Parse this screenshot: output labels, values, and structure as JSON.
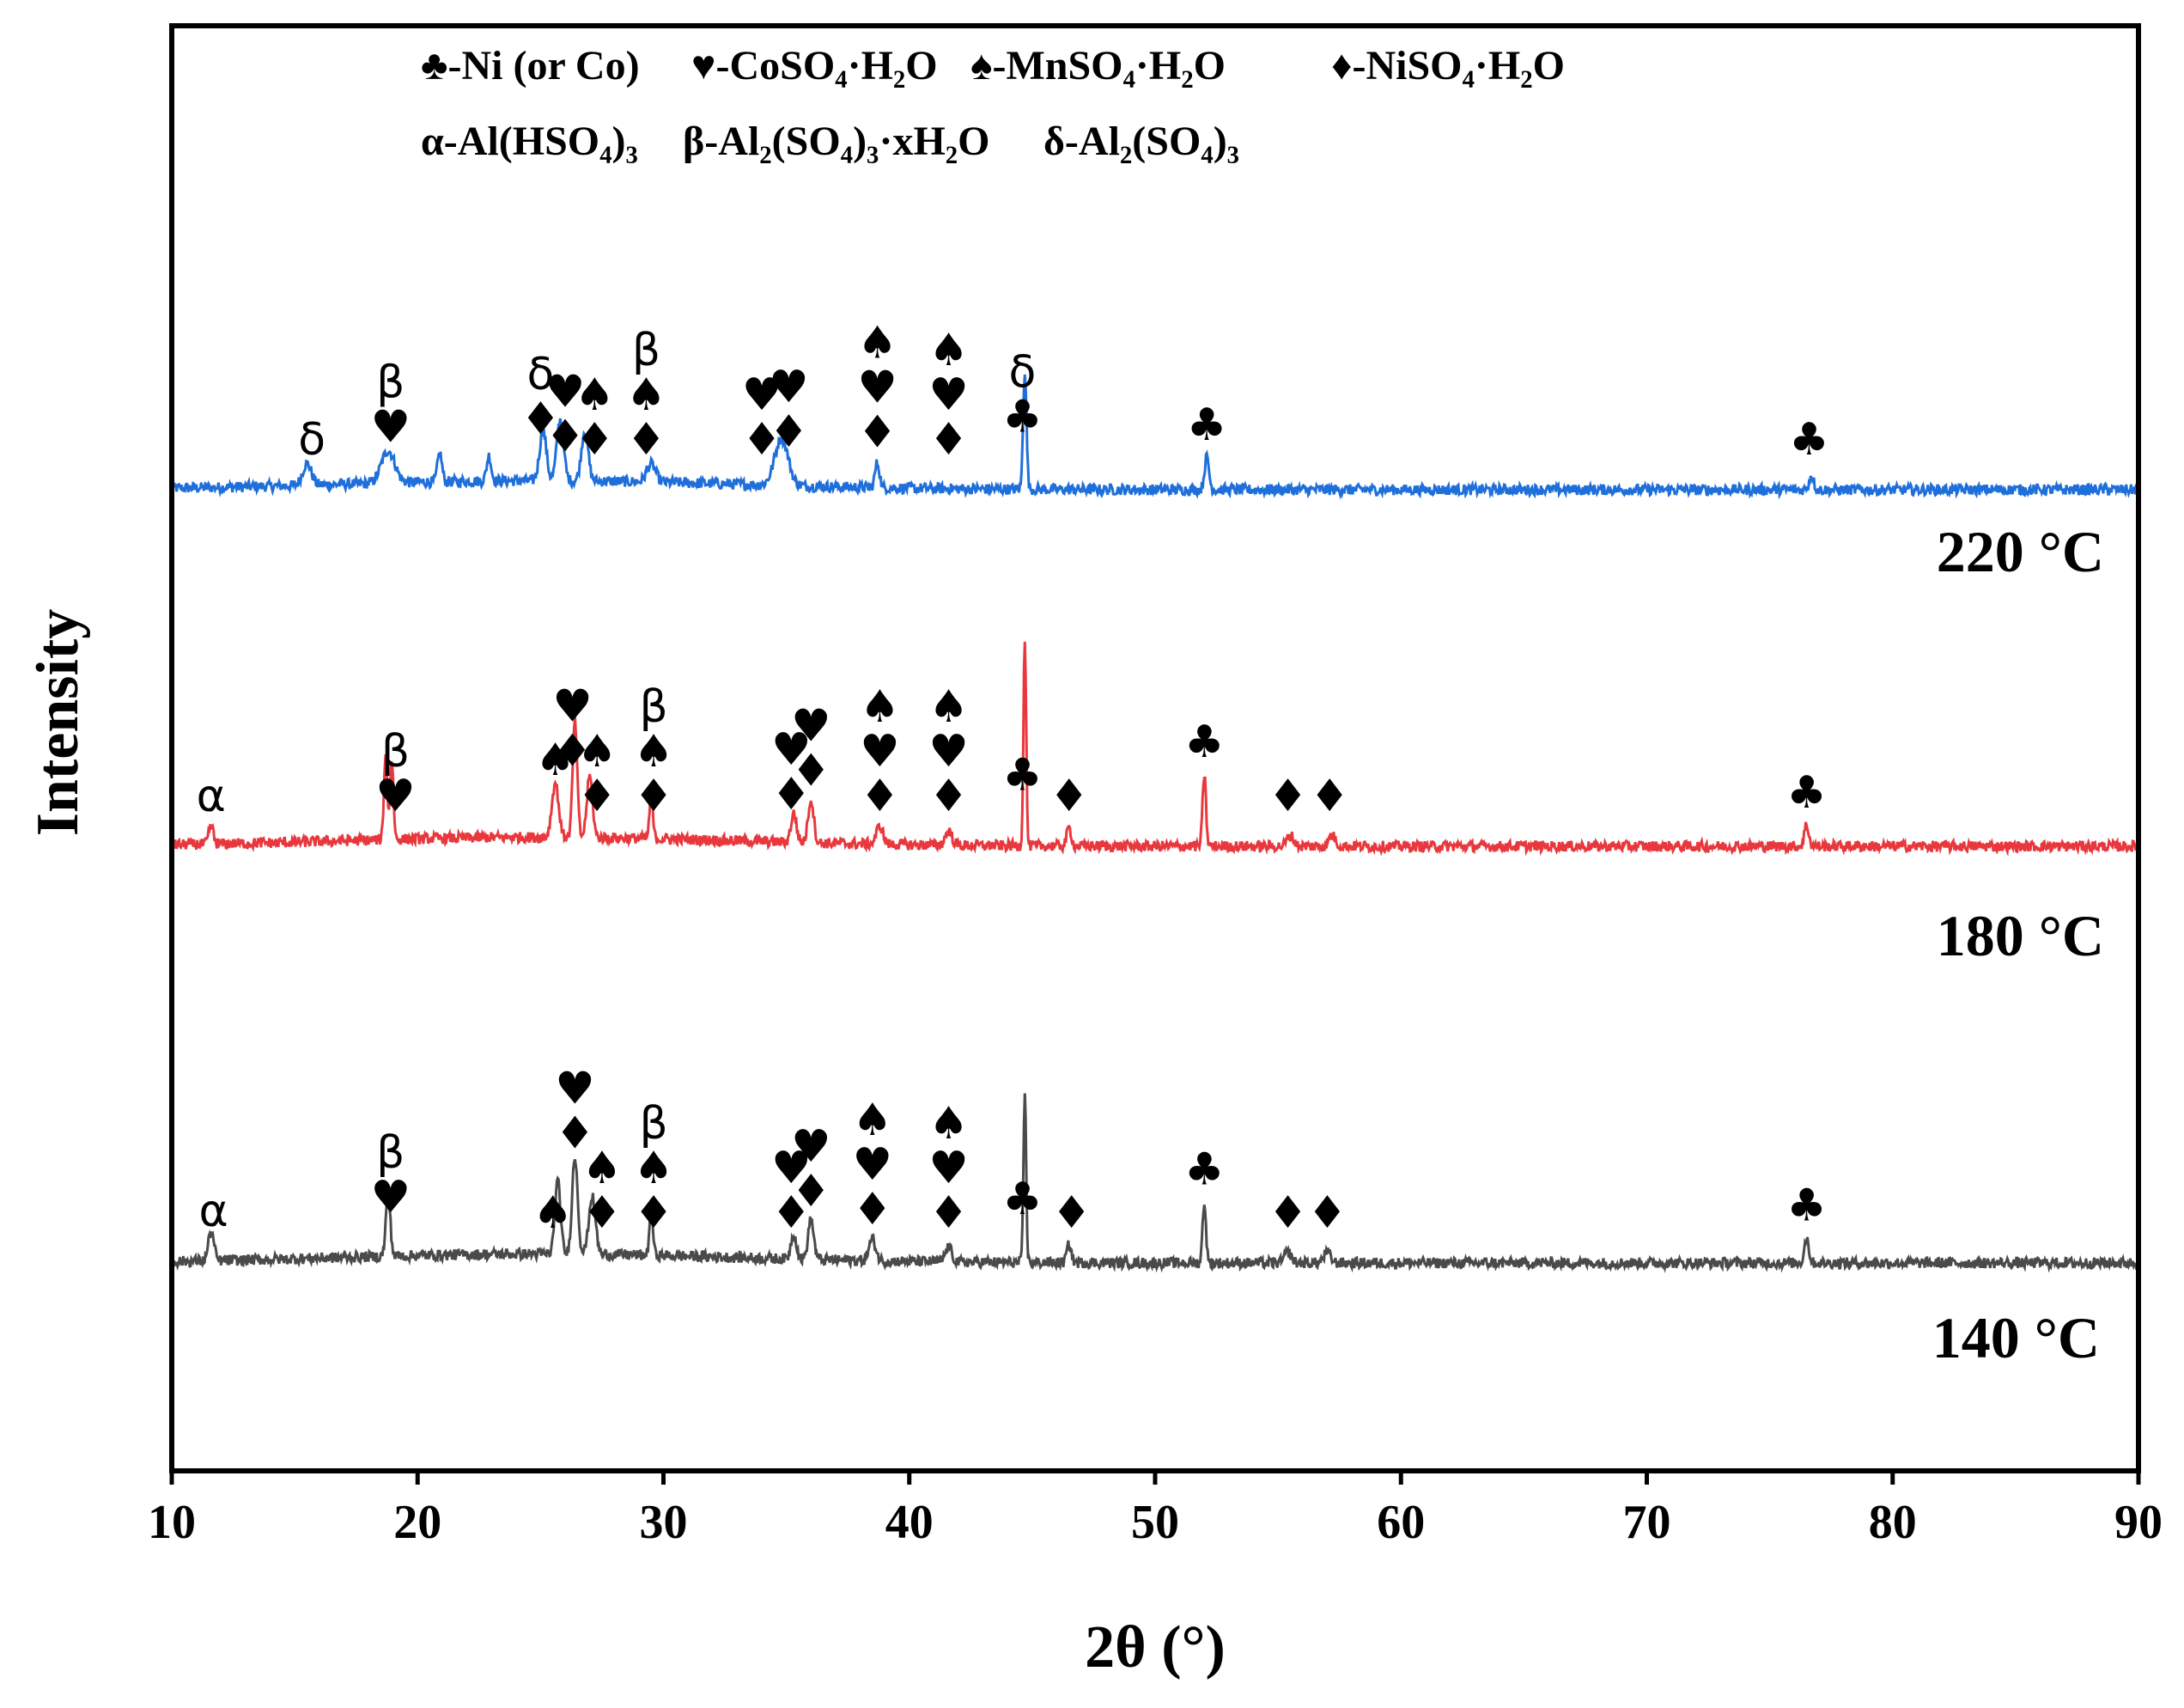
{
  "chart_data": {
    "type": "line",
    "title": "",
    "xlabel": "2θ (°)",
    "ylabel": "Intensity",
    "xlim": [
      10,
      90
    ],
    "xticks": [
      10,
      20,
      30,
      40,
      50,
      60,
      70,
      80,
      90
    ],
    "xtick_labels": [
      "10",
      "20",
      "30",
      "40",
      "50",
      "60",
      "70",
      "80",
      "90"
    ],
    "legend": {
      "placement": "top",
      "line1": [
        "♣-Ni (or Co)",
        "♥-CoSO₄·H₂O",
        "♠-MnSO₄·H₂O",
        "♦-NiSO₄·H₂O"
      ],
      "line2": [
        "α-Al(HSO₄)₃",
        "β-Al₂(SO₄)₃·xH₂O",
        "δ-Al₂(SO₄)₃"
      ]
    },
    "series": [
      {
        "name": "220 °C",
        "label": "220 °C",
        "color": "#1f6fdb",
        "baseline": 1.0,
        "peaks": [
          {
            "x": 15.5,
            "h": 0.06,
            "w": 0.4
          },
          {
            "x": 18.8,
            "h": 0.09,
            "w": 0.6
          },
          {
            "x": 20.9,
            "h": 0.08,
            "w": 0.2
          },
          {
            "x": 22.9,
            "h": 0.07,
            "w": 0.2
          },
          {
            "x": 25.1,
            "h": 0.14,
            "w": 0.3
          },
          {
            "x": 25.8,
            "h": 0.17,
            "w": 0.3
          },
          {
            "x": 26.8,
            "h": 0.14,
            "w": 0.3
          },
          {
            "x": 29.5,
            "h": 0.05,
            "w": 0.4
          },
          {
            "x": 34.8,
            "h": 0.13,
            "w": 0.6
          },
          {
            "x": 38.7,
            "h": 0.07,
            "w": 0.2
          },
          {
            "x": 44.7,
            "h": 0.33,
            "w": 0.15
          },
          {
            "x": 52.1,
            "h": 0.09,
            "w": 0.2
          },
          {
            "x": 76.7,
            "h": 0.04,
            "w": 0.2
          }
        ],
        "markers": [
          {
            "x": 15.7,
            "stack": [
              "δ"
            ]
          },
          {
            "x": 18.9,
            "stack": [
              "β",
              "♥"
            ]
          },
          {
            "x": 25.0,
            "stack": [
              "δ",
              "♦"
            ]
          },
          {
            "x": 26.0,
            "stack": [
              "♥",
              "♦"
            ]
          },
          {
            "x": 27.2,
            "stack": [
              "♠",
              "♦"
            ]
          },
          {
            "x": 29.3,
            "stack": [
              "β",
              "♠",
              "♦"
            ]
          },
          {
            "x": 34.0,
            "stack": [
              "♥",
              "♦"
            ]
          },
          {
            "x": 35.1,
            "stack": [
              "♥",
              "♦"
            ]
          },
          {
            "x": 38.7,
            "stack": [
              "♠",
              "♥",
              "♦"
            ]
          },
          {
            "x": 41.6,
            "stack": [
              "♠",
              "♥",
              "♦"
            ]
          },
          {
            "x": 44.6,
            "stack": [
              "δ",
              "♣"
            ]
          },
          {
            "x": 52.1,
            "stack": [
              "♣"
            ]
          },
          {
            "x": 76.6,
            "stack": [
              "♣"
            ]
          }
        ]
      },
      {
        "name": "180 °C",
        "label": "180 °C",
        "color": "#e8383d",
        "baseline": 0.0,
        "peaks": [
          {
            "x": 11.6,
            "h": 0.05,
            "w": 0.2
          },
          {
            "x": 18.7,
            "h": 0.24,
            "w": 0.15
          },
          {
            "x": 18.95,
            "h": 0.22,
            "w": 0.15
          },
          {
            "x": 25.6,
            "h": 0.15,
            "w": 0.3
          },
          {
            "x": 26.4,
            "h": 0.32,
            "w": 0.2
          },
          {
            "x": 27.0,
            "h": 0.17,
            "w": 0.25
          },
          {
            "x": 29.5,
            "h": 0.12,
            "w": 0.15
          },
          {
            "x": 35.3,
            "h": 0.08,
            "w": 0.25
          },
          {
            "x": 36.0,
            "h": 0.12,
            "w": 0.25
          },
          {
            "x": 38.8,
            "h": 0.05,
            "w": 0.3
          },
          {
            "x": 41.6,
            "h": 0.04,
            "w": 0.3
          },
          {
            "x": 44.7,
            "h": 0.58,
            "w": 0.12
          },
          {
            "x": 46.5,
            "h": 0.05,
            "w": 0.2
          },
          {
            "x": 52.0,
            "h": 0.2,
            "w": 0.15
          },
          {
            "x": 55.5,
            "h": 0.03,
            "w": 0.3
          },
          {
            "x": 57.2,
            "h": 0.03,
            "w": 0.3
          },
          {
            "x": 76.5,
            "h": 0.06,
            "w": 0.2
          }
        ],
        "markers": [
          {
            "x": 11.6,
            "stack": [
              "α"
            ]
          },
          {
            "x": 19.1,
            "stack": [
              "β",
              "♥"
            ]
          },
          {
            "x": 25.6,
            "stack": [
              "♠"
            ]
          },
          {
            "x": 26.3,
            "stack": [
              "♥",
              "♦"
            ]
          },
          {
            "x": 27.3,
            "stack": [
              "♠",
              "♦"
            ]
          },
          {
            "x": 29.6,
            "stack": [
              "β",
              "♠",
              "♦"
            ]
          },
          {
            "x": 35.2,
            "stack": [
              "♥",
              "♦"
            ]
          },
          {
            "x": 36.0,
            "stack": [
              "♥",
              "♦"
            ]
          },
          {
            "x": 38.8,
            "stack": [
              "♠",
              "♥",
              "♦"
            ]
          },
          {
            "x": 41.6,
            "stack": [
              "♠",
              "♥",
              "♦"
            ]
          },
          {
            "x": 44.6,
            "stack": [
              "♣"
            ]
          },
          {
            "x": 46.5,
            "stack": [
              "♦"
            ]
          },
          {
            "x": 52.0,
            "stack": [
              "♣"
            ]
          },
          {
            "x": 55.4,
            "stack": [
              "♦"
            ]
          },
          {
            "x": 57.1,
            "stack": [
              "♦"
            ]
          },
          {
            "x": 76.5,
            "stack": [
              "♣"
            ]
          }
        ]
      },
      {
        "name": "140 °C",
        "label": "140 °C",
        "color": "#4a4a4a",
        "baseline": -1.0,
        "peaks": [
          {
            "x": 11.6,
            "h": 0.08,
            "w": 0.25
          },
          {
            "x": 18.8,
            "h": 0.17,
            "w": 0.2
          },
          {
            "x": 25.7,
            "h": 0.2,
            "w": 0.25
          },
          {
            "x": 26.4,
            "h": 0.27,
            "w": 0.25
          },
          {
            "x": 27.1,
            "h": 0.16,
            "w": 0.3
          },
          {
            "x": 29.5,
            "h": 0.14,
            "w": 0.15
          },
          {
            "x": 35.3,
            "h": 0.07,
            "w": 0.25
          },
          {
            "x": 36.0,
            "h": 0.11,
            "w": 0.25
          },
          {
            "x": 38.5,
            "h": 0.06,
            "w": 0.3
          },
          {
            "x": 41.6,
            "h": 0.04,
            "w": 0.3
          },
          {
            "x": 44.7,
            "h": 0.47,
            "w": 0.12
          },
          {
            "x": 46.5,
            "h": 0.05,
            "w": 0.2
          },
          {
            "x": 52.0,
            "h": 0.17,
            "w": 0.15
          },
          {
            "x": 55.4,
            "h": 0.03,
            "w": 0.3
          },
          {
            "x": 57.0,
            "h": 0.03,
            "w": 0.3
          },
          {
            "x": 76.5,
            "h": 0.07,
            "w": 0.2
          }
        ],
        "markers": [
          {
            "x": 11.7,
            "stack": [
              "α"
            ]
          },
          {
            "x": 18.9,
            "stack": [
              "β",
              "♥"
            ]
          },
          {
            "x": 25.5,
            "stack": [
              "♠"
            ]
          },
          {
            "x": 26.4,
            "stack": [
              "♥",
              "♦"
            ]
          },
          {
            "x": 27.5,
            "stack": [
              "♠",
              "♦"
            ]
          },
          {
            "x": 29.6,
            "stack": [
              "β",
              "♠",
              "♦"
            ]
          },
          {
            "x": 35.2,
            "stack": [
              "♥",
              "♦"
            ]
          },
          {
            "x": 36.0,
            "stack": [
              "♥",
              "♦"
            ]
          },
          {
            "x": 38.5,
            "stack": [
              "♠",
              "♥",
              "♦"
            ]
          },
          {
            "x": 41.6,
            "stack": [
              "♠",
              "♥",
              "♦"
            ]
          },
          {
            "x": 44.6,
            "stack": [
              "♣"
            ]
          },
          {
            "x": 46.6,
            "stack": [
              "♦"
            ]
          },
          {
            "x": 52.0,
            "stack": [
              "♣"
            ]
          },
          {
            "x": 55.4,
            "stack": [
              "♦"
            ]
          },
          {
            "x": 57.0,
            "stack": [
              "♦"
            ]
          },
          {
            "x": 76.5,
            "stack": [
              "♣"
            ]
          }
        ]
      }
    ]
  }
}
